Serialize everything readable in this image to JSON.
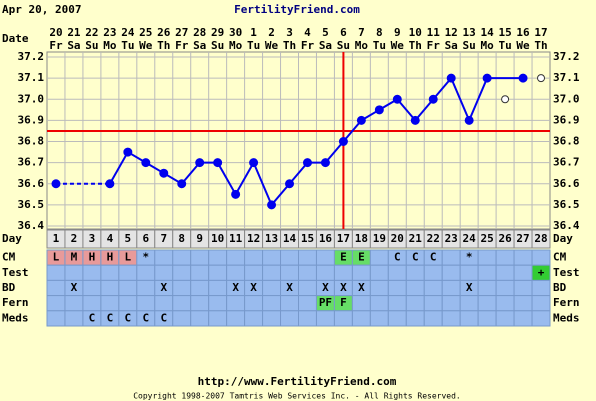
{
  "header": {
    "date": "Apr 20, 2007",
    "site": "FertilityFriend.com"
  },
  "footer": {
    "url": "http://www.FertilityFriend.com",
    "copyright": "Copyright 1998-2007 Tamtris Web Services Inc. - All Rights Reserved."
  },
  "chart_data": {
    "type": "line",
    "date_label": "Date",
    "day_label": "Day",
    "categories": [
      "20",
      "21",
      "22",
      "23",
      "24",
      "25",
      "26",
      "27",
      "28",
      "29",
      "30",
      "1",
      "2",
      "3",
      "4",
      "5",
      "6",
      "7",
      "8",
      "9",
      "10",
      "11",
      "12",
      "13",
      "14",
      "15",
      "16",
      "17"
    ],
    "weekdays": [
      "Fr",
      "Sa",
      "Su",
      "Mo",
      "Tu",
      "We",
      "Th",
      "Fr",
      "Sa",
      "Su",
      "Mo",
      "Tu",
      "We",
      "Th",
      "Fr",
      "Sa",
      "Su",
      "Mo",
      "Tu",
      "We",
      "Th",
      "Fr",
      "Sa",
      "Su",
      "Mo",
      "Tu",
      "We",
      "Th"
    ],
    "days": [
      1,
      2,
      3,
      4,
      5,
      6,
      7,
      8,
      9,
      10,
      11,
      12,
      13,
      14,
      15,
      16,
      17,
      18,
      19,
      20,
      21,
      22,
      23,
      24,
      25,
      26,
      27,
      28
    ],
    "series": [
      {
        "color": "#0000ee",
        "values": [
          36.6,
          null,
          null,
          36.6,
          36.75,
          36.7,
          36.65,
          36.6,
          36.7,
          36.7,
          36.55,
          36.7,
          36.5,
          36.6,
          36.7,
          36.7,
          36.8,
          36.9,
          36.95,
          37.0,
          36.9,
          37.0,
          37.1,
          36.9,
          37.1,
          37.0,
          37.1,
          37.1
        ],
        "markers": [
          "filled",
          "filled",
          "filled",
          "filled",
          "filled",
          "filled",
          "filled",
          "filled",
          "filled",
          "filled",
          "filled",
          "filled",
          "filled",
          "filled",
          "filled",
          "filled",
          "filled",
          "filled",
          "filled",
          "filled",
          "filled",
          "filled",
          "filled",
          "filled",
          "filled",
          "open",
          "filled",
          "open"
        ]
      }
    ],
    "ylim": [
      36.4,
      37.2
    ],
    "yticks": [
      36.4,
      36.5,
      36.6,
      36.7,
      36.8,
      36.9,
      {
        "value": 37.0,
        "label": "37.0"
      },
      37.1,
      37.2
    ],
    "grid": true,
    "coverline": 36.85,
    "ovulation_day": 17,
    "rows": [
      {
        "label": "CM",
        "cells": [
          "L",
          "M",
          "H",
          "H",
          "L",
          "*",
          null,
          null,
          null,
          null,
          null,
          null,
          null,
          null,
          null,
          null,
          "E",
          "E",
          null,
          "C",
          "C",
          "C",
          null,
          "*",
          null,
          null,
          null,
          null
        ],
        "colors": [
          "#e89a9a",
          "#e89a9a",
          "#e89a9a",
          "#e89a9a",
          "#e89a9a",
          null,
          null,
          null,
          null,
          null,
          null,
          null,
          null,
          null,
          null,
          null,
          "#66dd66",
          "#66dd66",
          null,
          null,
          null,
          null,
          null,
          null,
          null,
          null,
          null,
          null
        ]
      },
      {
        "label": "Test",
        "cells": [
          null,
          null,
          null,
          null,
          null,
          null,
          null,
          null,
          null,
          null,
          null,
          null,
          null,
          null,
          null,
          null,
          null,
          null,
          null,
          null,
          null,
          null,
          null,
          null,
          null,
          null,
          null,
          "+"
        ],
        "colors": [
          null,
          null,
          null,
          null,
          null,
          null,
          null,
          null,
          null,
          null,
          null,
          null,
          null,
          null,
          null,
          null,
          null,
          null,
          null,
          null,
          null,
          null,
          null,
          null,
          null,
          null,
          null,
          "#33cc33"
        ]
      },
      {
        "label": "BD",
        "cells": [
          null,
          "X",
          null,
          null,
          null,
          null,
          "X",
          null,
          null,
          null,
          "X",
          "X",
          null,
          "X",
          null,
          "X",
          "X",
          "X",
          null,
          null,
          null,
          null,
          null,
          "X",
          null,
          null,
          null,
          null
        ],
        "colors": [
          null,
          null,
          null,
          null,
          null,
          null,
          null,
          null,
          null,
          null,
          null,
          null,
          null,
          null,
          null,
          null,
          null,
          null,
          null,
          null,
          null,
          null,
          null,
          null,
          null,
          null,
          null,
          null
        ]
      },
      {
        "label": "Fern",
        "cells": [
          null,
          null,
          null,
          null,
          null,
          null,
          null,
          null,
          null,
          null,
          null,
          null,
          null,
          null,
          null,
          "PF",
          "F",
          null,
          null,
          null,
          null,
          null,
          null,
          null,
          null,
          null,
          null,
          null
        ],
        "colors": [
          null,
          null,
          null,
          null,
          null,
          null,
          null,
          null,
          null,
          null,
          null,
          null,
          null,
          null,
          null,
          "#66dd66",
          "#66dd66",
          null,
          null,
          null,
          null,
          null,
          null,
          null,
          null,
          null,
          null,
          null
        ]
      },
      {
        "label": "Meds",
        "cells": [
          null,
          null,
          "C",
          "C",
          "C",
          "C",
          "C",
          null,
          null,
          null,
          null,
          null,
          null,
          null,
          null,
          null,
          null,
          null,
          null,
          null,
          null,
          null,
          null,
          null,
          null,
          null,
          null,
          null
        ],
        "colors": [
          null,
          null,
          null,
          null,
          null,
          null,
          null,
          null,
          null,
          null,
          null,
          null,
          null,
          null,
          null,
          null,
          null,
          null,
          null,
          null,
          null,
          null,
          null,
          null,
          null,
          null,
          null,
          null
        ]
      }
    ]
  }
}
